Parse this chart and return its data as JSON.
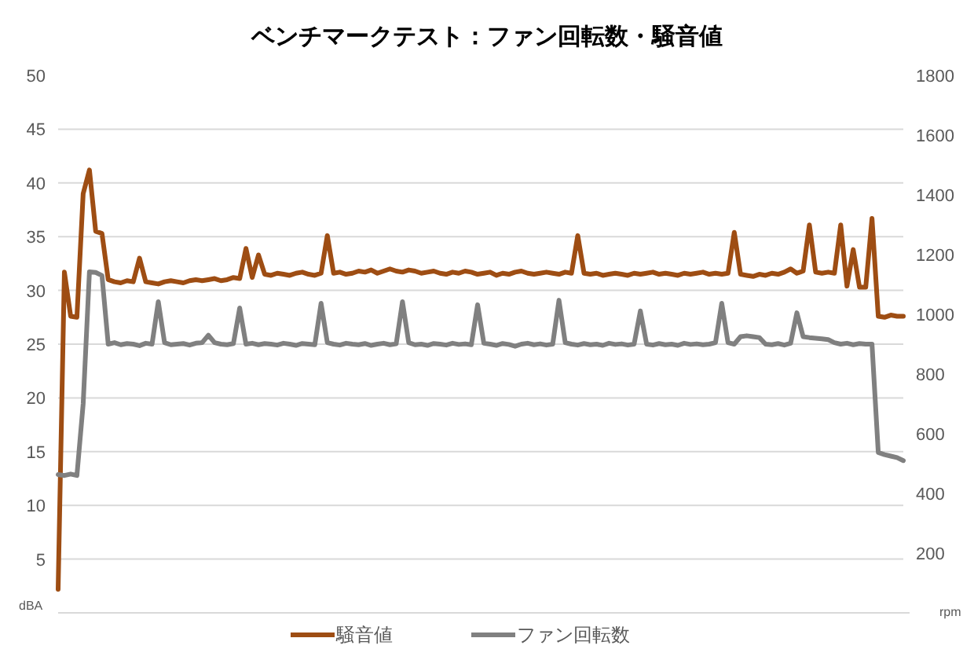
{
  "chart_data": {
    "type": "line",
    "title": "ベンチマークテスト：ファン回転数・騒音値",
    "ylabel": "dBA",
    "y2label": "rpm",
    "categories": [
      null,
      null,
      null,
      null,
      null,
      null,
      null,
      null,
      null,
      null,
      null,
      null,
      null,
      null,
      null,
      null,
      null,
      null,
      null,
      null,
      null,
      null,
      null,
      null,
      null,
      null,
      null,
      null,
      null,
      null,
      null,
      null,
      null,
      null,
      null,
      null,
      null,
      null,
      null,
      null,
      null,
      null,
      null,
      null,
      null,
      null,
      null,
      null,
      null,
      null,
      null,
      null,
      null,
      null,
      null,
      null,
      null,
      null,
      null,
      null,
      null,
      null,
      null,
      null,
      null,
      null,
      null,
      null,
      null,
      null,
      null,
      null,
      null,
      null,
      null,
      null,
      null,
      null,
      null,
      null,
      null,
      null,
      null,
      null,
      null,
      null,
      null,
      null,
      null,
      null,
      null,
      null,
      null,
      null,
      null,
      null,
      null,
      null,
      null,
      null,
      null,
      null,
      null,
      null,
      null,
      null,
      null,
      null,
      null,
      null,
      null,
      null,
      null,
      null,
      null,
      null,
      null,
      null,
      null,
      null,
      null,
      null,
      null,
      null,
      null,
      null,
      null,
      null,
      null,
      null,
      null,
      null,
      null,
      null,
      null,
      null
    ],
    "series": [
      {
        "name": "騒音値",
        "color": "#9e4d13",
        "values": [
          2.2,
          31.7,
          27.6,
          27.5,
          39,
          41.2,
          35.5,
          35.3,
          31,
          30.8,
          30.7,
          30.9,
          30.8,
          33,
          30.8,
          30.7,
          30.6,
          30.8,
          30.9,
          30.8,
          30.7,
          30.9,
          31,
          30.9,
          31,
          31.1,
          30.9,
          31,
          31.2,
          31.1,
          33.9,
          31.2,
          33.3,
          31.5,
          31.4,
          31.6,
          31.5,
          31.4,
          31.6,
          31.7,
          31.5,
          31.4,
          31.6,
          35.1,
          31.6,
          31.7,
          31.5,
          31.6,
          31.8,
          31.7,
          31.9,
          31.6,
          31.8,
          32,
          31.8,
          31.7,
          31.9,
          31.8,
          31.6,
          31.7,
          31.8,
          31.6,
          31.5,
          31.7,
          31.6,
          31.8,
          31.7,
          31.5,
          31.6,
          31.7,
          31.4,
          31.6,
          31.5,
          31.7,
          31.8,
          31.6,
          31.5,
          31.6,
          31.7,
          31.6,
          31.5,
          31.7,
          31.6,
          35.1,
          31.6,
          31.5,
          31.6,
          31.4,
          31.5,
          31.6,
          31.5,
          31.4,
          31.6,
          31.5,
          31.6,
          31.7,
          31.5,
          31.6,
          31.5,
          31.4,
          31.6,
          31.5,
          31.6,
          31.7,
          31.5,
          31.6,
          31.5,
          31.6,
          35.4,
          31.5,
          31.4,
          31.3,
          31.5,
          31.4,
          31.6,
          31.5,
          31.7,
          32,
          31.6,
          31.8,
          36.1,
          31.7,
          31.6,
          31.7,
          31.6,
          36.1,
          30.4,
          33.8,
          30.3,
          30.3,
          36.7,
          27.6,
          27.5,
          27.7,
          27.6,
          27.6
        ]
      },
      {
        "name": "ファン回転数",
        "color": "#808080",
        "axis": "y2",
        "values": [
          463,
          460,
          465,
          460,
          700,
          1142,
          1140,
          1130,
          900,
          905,
          898,
          902,
          900,
          895,
          903,
          900,
          1042,
          905,
          898,
          900,
          902,
          897,
          903,
          905,
          930,
          905,
          900,
          898,
          902,
          1021,
          900,
          903,
          898,
          902,
          900,
          897,
          903,
          900,
          896,
          902,
          900,
          898,
          1037,
          905,
          900,
          897,
          903,
          900,
          898,
          902,
          896,
          900,
          903,
          898,
          901,
          1042,
          905,
          898,
          900,
          896,
          902,
          900,
          897,
          903,
          899,
          901,
          898,
          1032,
          903,
          900,
          896,
          902,
          899,
          893,
          900,
          903,
          898,
          901,
          897,
          900,
          1047,
          905,
          900,
          897,
          902,
          898,
          900,
          896,
          903,
          899,
          901,
          897,
          900,
          1011,
          900,
          897,
          902,
          898,
          900,
          896,
          903,
          899,
          901,
          898,
          900,
          905,
          1037,
          905,
          900,
          925,
          928,
          925,
          922,
          900,
          898,
          902,
          897,
          903,
          1005,
          925,
          922,
          920,
          918,
          915,
          905,
          900,
          903,
          898,
          902,
          900,
          900,
          537,
          530,
          525,
          520,
          510
        ]
      }
    ],
    "ylim": [
      0,
      50
    ],
    "yticks": [
      {
        "value": 0,
        "label": null
      },
      5,
      10,
      15,
      20,
      25,
      30,
      35,
      40,
      45,
      50
    ],
    "y2lim": [
      0,
      1800
    ],
    "y2ticks": [
      {
        "value": 0,
        "label": null
      },
      200,
      400,
      600,
      800,
      1000,
      1200,
      1400,
      1600,
      1800
    ],
    "grid": "y",
    "legend": "bottom"
  }
}
